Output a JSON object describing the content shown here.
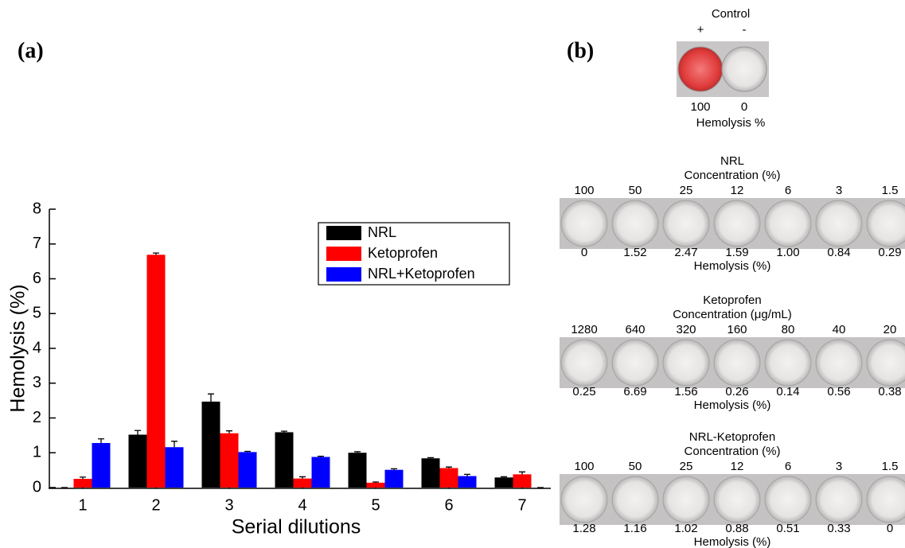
{
  "panel_labels": {
    "a": "(a)",
    "b": "(b)"
  },
  "chart_data": {
    "type": "bar",
    "x_label": "Serial dilutions",
    "y_label": "Hemolysis (%)",
    "categories": [
      "1",
      "2",
      "3",
      "4",
      "5",
      "6",
      "7"
    ],
    "series": [
      {
        "name": "NRL",
        "color": "#000000",
        "values": [
          0,
          1.52,
          2.47,
          1.59,
          1.0,
          0.84,
          0.29
        ],
        "errors": [
          0,
          0.12,
          0.22,
          0.03,
          0.03,
          0.02,
          0.02
        ]
      },
      {
        "name": "Ketoprofen",
        "color": "#ff0000",
        "values": [
          0.25,
          6.69,
          1.56,
          0.26,
          0.14,
          0.56,
          0.38
        ],
        "errors": [
          0.05,
          0.05,
          0.07,
          0.05,
          0.02,
          0.03,
          0.07
        ]
      },
      {
        "name": "NRL+Ketoprofen",
        "color": "#0000ff",
        "values": [
          1.28,
          1.16,
          1.02,
          0.88,
          0.51,
          0.33,
          0
        ],
        "errors": [
          0.12,
          0.17,
          0.02,
          0.02,
          0.03,
          0.05,
          0
        ]
      }
    ],
    "ylim": [
      0,
      8
    ],
    "yticks": [
      0,
      1,
      2,
      3,
      4,
      5,
      6,
      7,
      8
    ],
    "legend": "upper right"
  },
  "photo_panel": {
    "control": {
      "title": "Control",
      "signs": [
        "+",
        "-"
      ],
      "values": [
        "100",
        "0"
      ],
      "caption": "Hemolysis %"
    },
    "strips": [
      {
        "title": "NRL",
        "subtitle": "Concentration (%)",
        "concentrations": [
          "100",
          "50",
          "25",
          "12",
          "6",
          "3",
          "1.5"
        ],
        "hemolysis": [
          "0",
          "1.52",
          "2.47",
          "1.59",
          "1.00",
          "0.84",
          "0.29"
        ],
        "caption": "Hemolysis (%)"
      },
      {
        "title": "Ketoprofen",
        "subtitle": "Concentration (μg/mL)",
        "concentrations": [
          "1280",
          "640",
          "320",
          "160",
          "80",
          "40",
          "20"
        ],
        "hemolysis": [
          "0.25",
          "6.69",
          "1.56",
          "0.26",
          "0.14",
          "0.56",
          "0.38"
        ],
        "caption": "Hemolysis (%)"
      },
      {
        "title": "NRL-Ketoprofen",
        "subtitle": "Concentration (%)",
        "concentrations": [
          "100",
          "50",
          "25",
          "12",
          "6",
          "3",
          "1.5"
        ],
        "hemolysis": [
          "1.28",
          "1.16",
          "1.02",
          "0.88",
          "0.51",
          "0.33",
          "0"
        ],
        "caption": "Hemolysis (%)"
      }
    ]
  }
}
